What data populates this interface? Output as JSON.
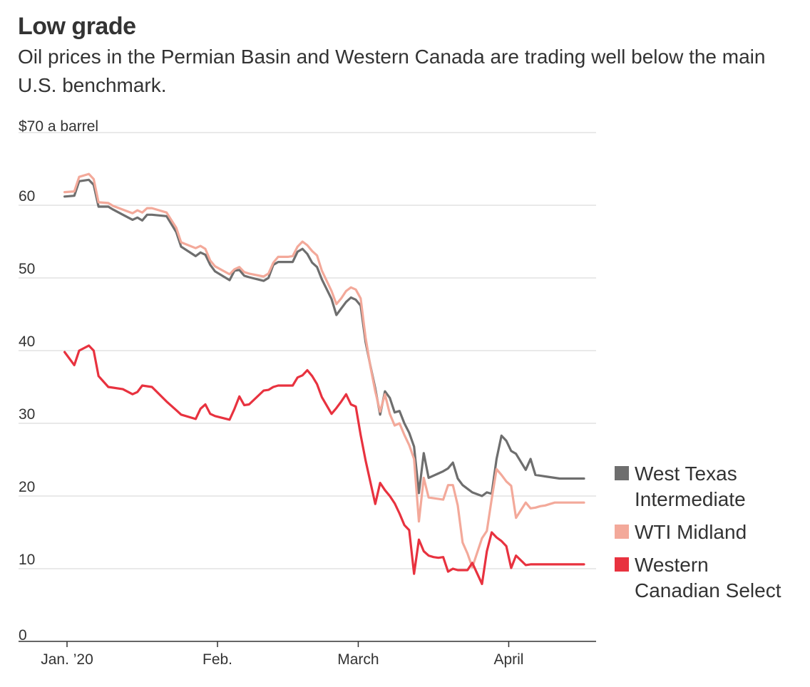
{
  "chart_data": {
    "type": "line",
    "title": "Low grade",
    "subtitle": "Oil prices in the Permian Basin and Western Canada are trading well below the main U.S. benchmark.",
    "ylabel": "$70 a barrel",
    "ylim": [
      0,
      70
    ],
    "yticks": [
      0,
      10,
      20,
      30,
      40,
      50,
      60,
      70
    ],
    "ytick_labels": [
      "0",
      "10",
      "20",
      "30",
      "40",
      "50",
      "60",
      "$70 a barrel"
    ],
    "x_domain": [
      0,
      113
    ],
    "xticks": [
      {
        "label": "Jan. ’20",
        "x": 0
      },
      {
        "label": "Feb.",
        "x": 31
      },
      {
        "label": "March",
        "x": 60
      },
      {
        "label": "April",
        "x": 91
      }
    ],
    "grid": true,
    "legend_position": "right",
    "series": [
      {
        "name": "West Texas Intermediate",
        "legend_lines": [
          "West Texas",
          "Intermediate"
        ],
        "color": "#6e6e6e",
        "x": [
          -0.5,
          1.5,
          2.5,
          4.5,
          5.5,
          6.5,
          8.5,
          9.5,
          11.5,
          13.5,
          14.5,
          15.5,
          16.5,
          17.5,
          20.5,
          22.5,
          23.5,
          26.5,
          27.5,
          28.5,
          29.5,
          30.5,
          33.5,
          34.5,
          35.5,
          36.5,
          37.5,
          40.5,
          41.5,
          42.5,
          43.5,
          44.5,
          45.5,
          46.5,
          47.5,
          48.5,
          49.5,
          50.5,
          51.5,
          52.5,
          54.5,
          55.5,
          56.5,
          57.5,
          58.5,
          59.5,
          60.5,
          61.5,
          62.5,
          63.5,
          64.5,
          65.5,
          66.5,
          67.5,
          68.5,
          69.5,
          70.5,
          71.5,
          72.5,
          73.5,
          74.5,
          75.5,
          76.5,
          77.5,
          78.5,
          79.5,
          80.5,
          81.5,
          82.5,
          83.5,
          85.5,
          86.5,
          87.5,
          88.5,
          89.5,
          90.5,
          91.5,
          92.5,
          94.5,
          95.5,
          96.5,
          97.5,
          98.5,
          99.5,
          100.5,
          101.5,
          102.5,
          103.5,
          104.5,
          106.5
        ],
        "y": [
          61.2,
          61.3,
          63.3,
          63.5,
          62.8,
          59.8,
          59.8,
          59.4,
          58.7,
          58.0,
          58.3,
          57.9,
          58.7,
          58.7,
          58.5,
          56.3,
          54.3,
          53.0,
          53.5,
          53.2,
          51.8,
          50.9,
          49.7,
          51.0,
          51.1,
          50.3,
          50.1,
          49.6,
          50.0,
          51.8,
          52.2,
          52.2,
          52.2,
          52.2,
          53.6,
          54.0,
          53.3,
          52.1,
          51.5,
          49.8,
          47.1,
          44.9,
          45.8,
          46.7,
          47.3,
          47.0,
          46.2,
          41.2,
          37.9,
          34.8,
          31.2,
          34.4,
          33.5,
          31.5,
          31.7,
          30.0,
          28.7,
          26.8,
          20.4,
          25.9,
          22.5,
          22.8,
          23.1,
          23.4,
          23.8,
          24.6,
          22.4,
          21.5,
          21.0,
          20.5,
          20.0,
          20.5,
          20.3,
          25.1,
          28.3,
          27.6,
          26.2,
          25.8,
          23.6,
          25.1,
          22.9,
          22.8,
          22.7,
          22.6,
          22.5,
          22.4,
          22.4,
          22.4,
          22.4,
          22.4
        ]
      },
      {
        "name": "WTI Midland",
        "legend_lines": [
          "WTI Midland"
        ],
        "color": "#f3a99a",
        "x": [
          -0.5,
          1.5,
          2.5,
          4.5,
          5.5,
          6.5,
          8.5,
          9.5,
          11.5,
          13.5,
          14.5,
          15.5,
          16.5,
          17.5,
          20.5,
          22.5,
          23.5,
          26.5,
          27.5,
          28.5,
          29.5,
          30.5,
          33.5,
          34.5,
          35.5,
          36.5,
          37.5,
          40.5,
          41.5,
          42.5,
          43.5,
          44.5,
          45.5,
          46.5,
          47.5,
          48.5,
          49.5,
          50.5,
          51.5,
          52.5,
          54.5,
          55.5,
          56.5,
          57.5,
          58.5,
          59.5,
          60.5,
          61.5,
          62.5,
          63.5,
          64.5,
          65.5,
          66.5,
          67.5,
          68.5,
          69.5,
          70.5,
          71.5,
          72.5,
          73.5,
          74.5,
          75.5,
          76.5,
          77.5,
          78.5,
          79.5,
          80.5,
          81.5,
          82.5,
          83.5,
          85.5,
          86.5,
          87.5,
          88.5,
          89.5,
          90.5,
          91.5,
          92.5,
          94.5,
          95.5,
          96.5,
          97.5,
          98.5,
          99.5,
          100.5,
          101.5,
          102.5,
          103.5,
          104.5,
          106.5
        ],
        "y": [
          61.8,
          61.9,
          63.9,
          64.3,
          63.6,
          60.4,
          60.3,
          59.9,
          59.4,
          58.9,
          59.3,
          59.0,
          59.6,
          59.6,
          59.0,
          56.9,
          54.9,
          54.1,
          54.4,
          54.0,
          52.4,
          51.6,
          50.5,
          51.2,
          51.5,
          50.8,
          50.6,
          50.2,
          50.6,
          52.1,
          52.9,
          52.9,
          52.9,
          53.0,
          54.3,
          55.0,
          54.5,
          53.7,
          53.1,
          51.0,
          48.2,
          46.4,
          47.2,
          48.2,
          48.7,
          48.4,
          47.2,
          41.8,
          37.8,
          34.4,
          31.6,
          34.0,
          31.3,
          29.7,
          30.0,
          28.4,
          27.0,
          25.1,
          16.5,
          22.5,
          19.8,
          19.7,
          19.6,
          19.5,
          21.5,
          21.5,
          18.7,
          13.6,
          12.1,
          10.2,
          14.2,
          15.2,
          19.6,
          23.7,
          22.9,
          22.0,
          21.4,
          17.0,
          19.1,
          18.3,
          18.4,
          18.6,
          18.7,
          18.9,
          19.1,
          19.1,
          19.1,
          19.1,
          19.1,
          19.1
        ]
      },
      {
        "name": "Western Canadian Select",
        "legend_lines": [
          "Western",
          "Canadian Select"
        ],
        "color": "#e8323f",
        "x": [
          -0.5,
          1.5,
          2.5,
          4.5,
          5.5,
          6.5,
          8.5,
          9.5,
          11.5,
          13.5,
          14.5,
          15.5,
          16.5,
          17.5,
          20.5,
          22.5,
          23.5,
          26.5,
          27.5,
          28.5,
          29.5,
          30.5,
          33.5,
          34.5,
          35.5,
          36.5,
          37.5,
          40.5,
          41.5,
          42.5,
          43.5,
          44.5,
          45.5,
          46.5,
          47.5,
          48.5,
          49.5,
          50.5,
          51.5,
          52.5,
          54.5,
          55.5,
          56.5,
          57.5,
          58.5,
          59.5,
          60.5,
          61.5,
          62.5,
          63.5,
          64.5,
          65.5,
          66.5,
          67.5,
          68.5,
          69.5,
          70.5,
          71.5,
          72.5,
          73.5,
          74.5,
          75.5,
          76.5,
          77.5,
          78.5,
          79.5,
          80.5,
          81.5,
          82.5,
          83.5,
          85.5,
          86.5,
          87.5,
          88.5,
          89.5,
          90.5,
          91.5,
          92.5,
          94.5,
          95.5,
          96.5,
          97.5,
          98.5,
          99.5,
          100.5,
          101.5,
          102.5,
          103.5,
          104.5,
          106.5
        ],
        "y": [
          39.8,
          38.0,
          40.0,
          40.7,
          40.0,
          36.5,
          35.0,
          34.9,
          34.7,
          34.0,
          34.3,
          35.2,
          35.1,
          35.0,
          33.0,
          31.8,
          31.2,
          30.6,
          32.0,
          32.6,
          31.3,
          31.0,
          30.5,
          32.0,
          33.7,
          32.5,
          32.6,
          34.5,
          34.6,
          35.0,
          35.2,
          35.2,
          35.2,
          35.2,
          36.3,
          36.6,
          37.3,
          36.5,
          35.4,
          33.6,
          31.3,
          32.1,
          33.0,
          34.0,
          32.6,
          32.3,
          28.4,
          24.9,
          21.9,
          18.9,
          21.8,
          20.8,
          20.0,
          19.0,
          17.6,
          16.0,
          15.3,
          9.3,
          14.0,
          12.4,
          11.8,
          11.6,
          11.5,
          11.6,
          9.6,
          10.0,
          9.8,
          9.8,
          9.8,
          10.8,
          7.9,
          12.4,
          15.0,
          14.3,
          13.8,
          13.1,
          10.1,
          11.8,
          10.5,
          10.6,
          10.6,
          10.6,
          10.6,
          10.6,
          10.6,
          10.6,
          10.6,
          10.6,
          10.6,
          10.6
        ]
      }
    ]
  }
}
